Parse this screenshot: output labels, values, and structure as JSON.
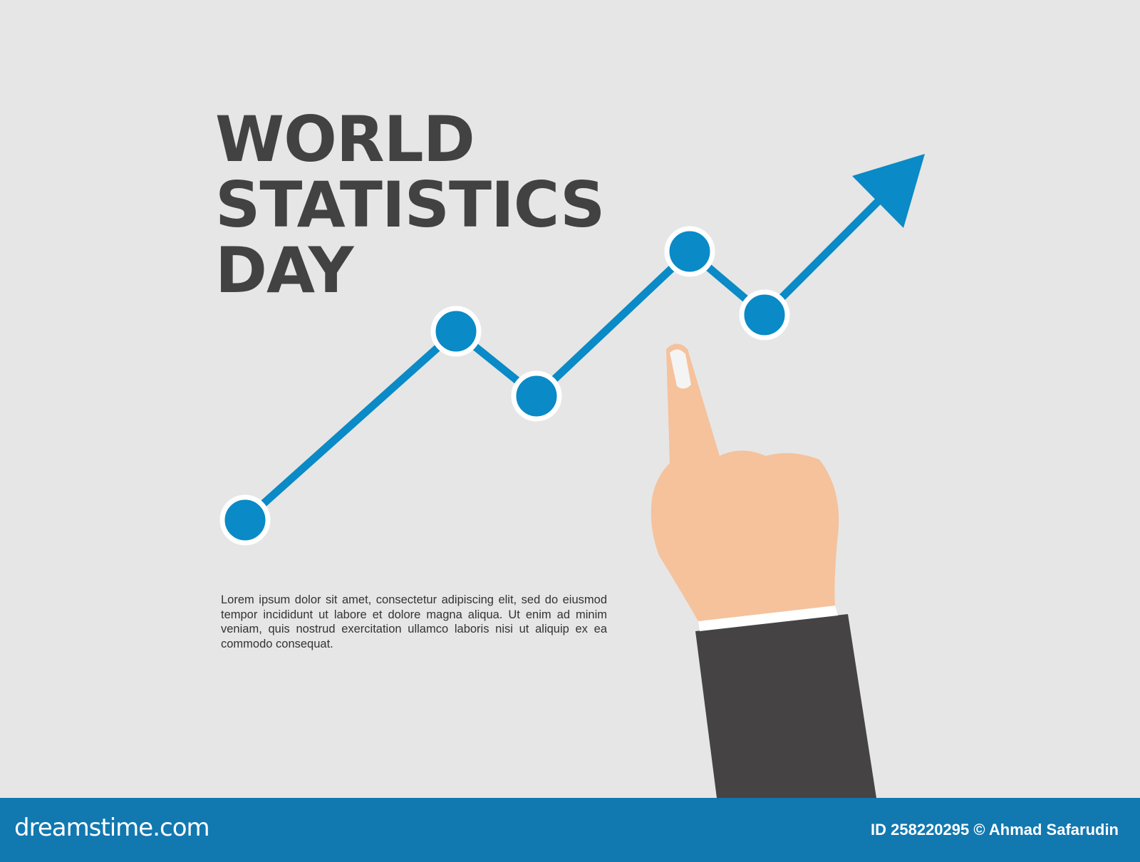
{
  "title": {
    "lines": [
      "WORLD",
      "STATISTICS",
      "DAY"
    ]
  },
  "body_text": "Lorem ipsum dolor sit amet, consectetur adipiscing elit, sed do eiusmod tempor incididunt ut labore et dolore magna aliqua. Ut enim ad minim veniam, quis nostrud exercitation ullamco laboris nisi ut aliquip ex ea commodo consequat.",
  "footer": {
    "logo": "dreamstime.com",
    "credit": "ID 258220295 © Ahmad Safarudin"
  },
  "colors": {
    "background": "#e6e6e6",
    "accent": "#0a8ac6",
    "title": "#424242",
    "skin": "#f5c29c",
    "sleeve": "#454343",
    "footer": "#1278b0"
  },
  "graphic": {
    "line_points": 5,
    "arrow": "up-right"
  }
}
